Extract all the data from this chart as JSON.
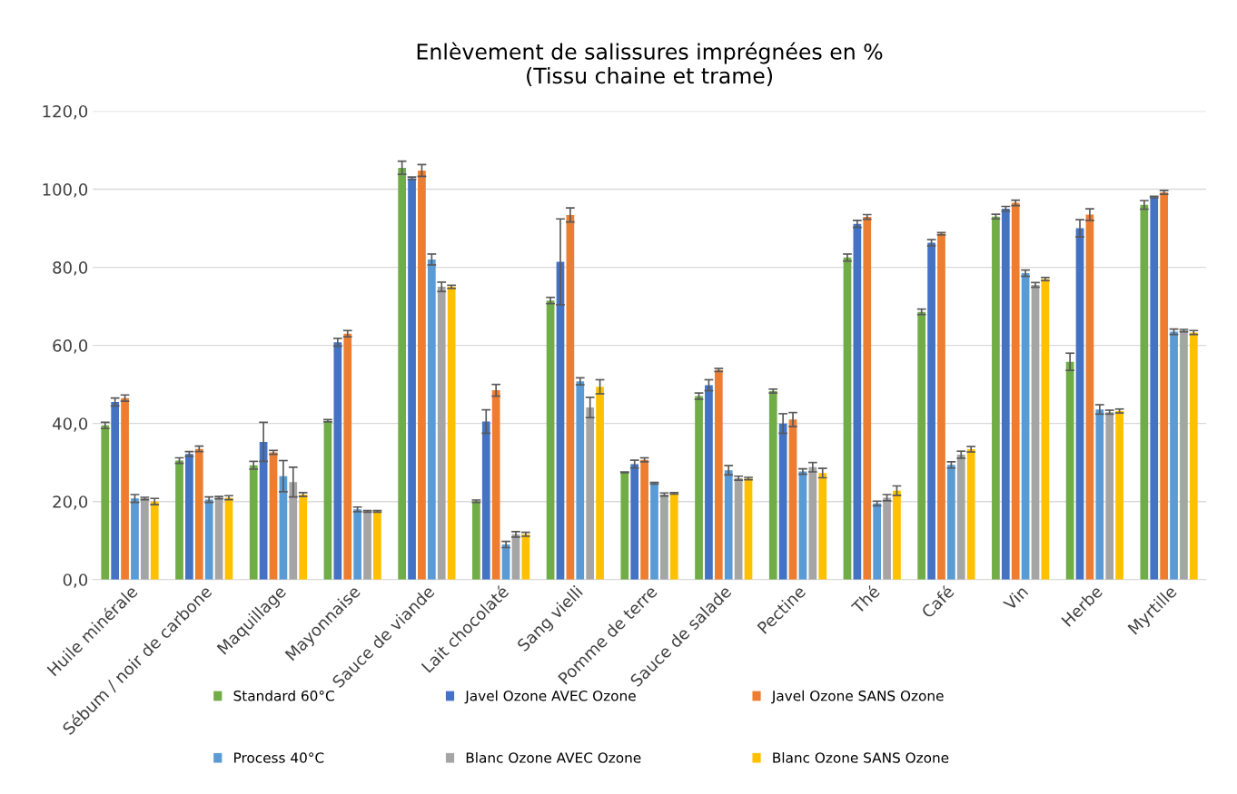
{
  "chart_data": {
    "type": "bar",
    "title": "Enlèvement de salissures imprégnées en %\n(Tissu chaine et trame)",
    "categories": [
      "Huile minérale",
      "Sébum / noir de carbone",
      "Maquillage",
      "Mayonnaise",
      "Sauce de viande",
      "Lait chocolaté",
      "Sang vielli",
      "Pomme de terre",
      "Sauce de salade",
      "Pectine",
      "Thé",
      "Café",
      "Vin",
      "Herbe",
      "Myrtille"
    ],
    "series": [
      {
        "name": "Standard 60°C",
        "color": "#70ad47",
        "values": [
          39.5,
          30.5,
          29.3,
          40.7,
          105.5,
          20.1,
          71.5,
          27.5,
          47.0,
          48.3,
          82.5,
          68.6,
          93.0,
          55.8,
          96.0
        ],
        "errors": [
          0.8,
          0.7,
          1.0,
          0.3,
          1.7,
          0.3,
          0.8,
          0.1,
          0.8,
          0.5,
          0.9,
          0.7,
          0.6,
          2.2,
          1.1
        ]
      },
      {
        "name": "Javel Ozone AVEC Ozone",
        "color": "#4472c4",
        "values": [
          45.5,
          32.2,
          35.3,
          60.8,
          102.8,
          40.5,
          81.4,
          29.6,
          49.8,
          40.0,
          91.1,
          86.3,
          95.0,
          90.0,
          98.0
        ],
        "errors": [
          1.0,
          0.6,
          5.0,
          1.0,
          0.3,
          3.0,
          11.0,
          1.0,
          1.4,
          2.5,
          0.9,
          0.8,
          0.6,
          2.2,
          0.2
        ]
      },
      {
        "name": "Javel Ozone SANS Ozone",
        "color": "#ed7d31",
        "values": [
          46.5,
          33.5,
          32.6,
          63.0,
          104.8,
          48.5,
          93.4,
          30.7,
          53.7,
          41.0,
          92.9,
          88.6,
          96.5,
          93.5,
          99.2
        ],
        "errors": [
          0.8,
          0.7,
          0.5,
          0.8,
          1.5,
          1.5,
          1.8,
          0.5,
          0.4,
          1.8,
          0.6,
          0.3,
          0.7,
          1.5,
          0.5
        ]
      },
      {
        "name": "Process 40°C",
        "color": "#5b9bd5",
        "values": [
          20.8,
          20.5,
          26.5,
          18.0,
          82.0,
          9.0,
          50.8,
          24.7,
          28.0,
          27.7,
          19.5,
          29.4,
          78.5,
          43.6,
          63.5
        ],
        "errors": [
          1.0,
          0.7,
          4.0,
          0.6,
          1.4,
          0.8,
          0.9,
          0.2,
          1.2,
          0.7,
          0.6,
          0.8,
          0.8,
          1.2,
          0.7
        ]
      },
      {
        "name": "Blanc Ozone AVEC Ozone",
        "color": "#a5a5a5",
        "values": [
          20.8,
          21.0,
          25.0,
          17.5,
          75.0,
          11.6,
          44.1,
          21.8,
          26.0,
          28.8,
          21.0,
          32.0,
          75.5,
          42.9,
          63.8
        ],
        "errors": [
          0.3,
          0.3,
          3.8,
          0.2,
          1.2,
          0.7,
          2.6,
          0.4,
          0.5,
          1.2,
          0.8,
          0.9,
          0.6,
          0.5,
          0.3
        ]
      },
      {
        "name": "Blanc Ozone SANS Ozone",
        "color": "#ffc000",
        "values": [
          20.0,
          21.0,
          21.8,
          17.5,
          75.0,
          11.6,
          49.4,
          22.1,
          25.9,
          27.3,
          22.8,
          33.4,
          77.0,
          43.2,
          63.3
        ],
        "errors": [
          0.8,
          0.5,
          0.5,
          0.2,
          0.4,
          0.5,
          1.8,
          0.2,
          0.3,
          1.2,
          1.2,
          0.7,
          0.4,
          0.5,
          0.5
        ]
      }
    ],
    "ylim": [
      0,
      120
    ],
    "yticks": [
      {
        "value": 0,
        "label": "0,0"
      },
      {
        "value": 20,
        "label": "20,0"
      },
      {
        "value": 40,
        "label": "40,0"
      },
      {
        "value": 60,
        "label": "60,0"
      },
      {
        "value": 80,
        "label": "80,0"
      },
      {
        "value": 100,
        "label": "100,0"
      },
      {
        "value": 120,
        "label": "120,0"
      }
    ],
    "grid": "y",
    "legend": "bottom"
  }
}
